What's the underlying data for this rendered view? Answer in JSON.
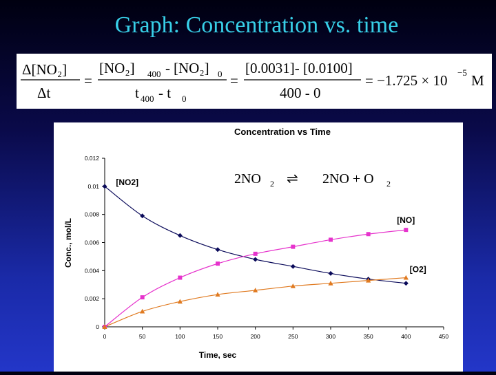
{
  "slide": {
    "title": "Graph: Concentration vs. time"
  },
  "equation": {
    "lhs_num": "Δ[NO₂]",
    "lhs_den": "Δt",
    "mid_num_a": "[NO₂]",
    "mid_num_a_sub": "400",
    "mid_num_op": "-",
    "mid_num_b": "[NO₂]",
    "mid_num_b_sub": "0",
    "mid_den": "t",
    "mid_den_sub_a": "400",
    "mid_den_op": "- t",
    "mid_den_sub_b": "0",
    "val_num": "[0.0031]- [0.0100]",
    "val_den": "400 - 0",
    "result": "= −1.725 × 10",
    "result_exp": "−5",
    "result_unit": "M",
    "eq1": "=",
    "eq2": "="
  },
  "reaction": {
    "left": "2NO",
    "left_sub": "2",
    "arrow": "⇌",
    "right": "2NO + O",
    "right_sub": "2"
  },
  "chart_data": {
    "type": "line",
    "title": "Concentration vs Time",
    "xlabel": "Time, sec",
    "ylabel": "Conc., mol/L",
    "xlim": [
      0,
      450
    ],
    "ylim": [
      0,
      0.012
    ],
    "xticks": [
      0,
      50,
      100,
      150,
      200,
      250,
      300,
      350,
      400,
      450
    ],
    "yticks": [
      0,
      0.002,
      0.004,
      0.006,
      0.008,
      0.01,
      0.012
    ],
    "ytick_labels": [
      "0",
      "0.002",
      "0.004",
      "0.006",
      "0.008",
      "0.01",
      "0.012"
    ],
    "grid": false,
    "x": [
      0,
      50,
      100,
      150,
      200,
      250,
      300,
      350,
      400
    ],
    "series": [
      {
        "name": "[NO2]",
        "color": "#0a0a5a",
        "marker": "diamond",
        "values": [
          0.01,
          0.0079,
          0.0065,
          0.0055,
          0.0048,
          0.0043,
          0.0038,
          0.0034,
          0.0031
        ]
      },
      {
        "name": "[NO]",
        "color": "#e633cc",
        "marker": "square",
        "values": [
          0,
          0.0021,
          0.0035,
          0.0045,
          0.0052,
          0.0057,
          0.0062,
          0.0066,
          0.0069
        ]
      },
      {
        "name": "[O2]",
        "color": "#e07a20",
        "marker": "triangle",
        "values": [
          0,
          0.0011,
          0.0018,
          0.0023,
          0.0026,
          0.0029,
          0.0031,
          0.0033,
          0.0035
        ]
      }
    ]
  }
}
